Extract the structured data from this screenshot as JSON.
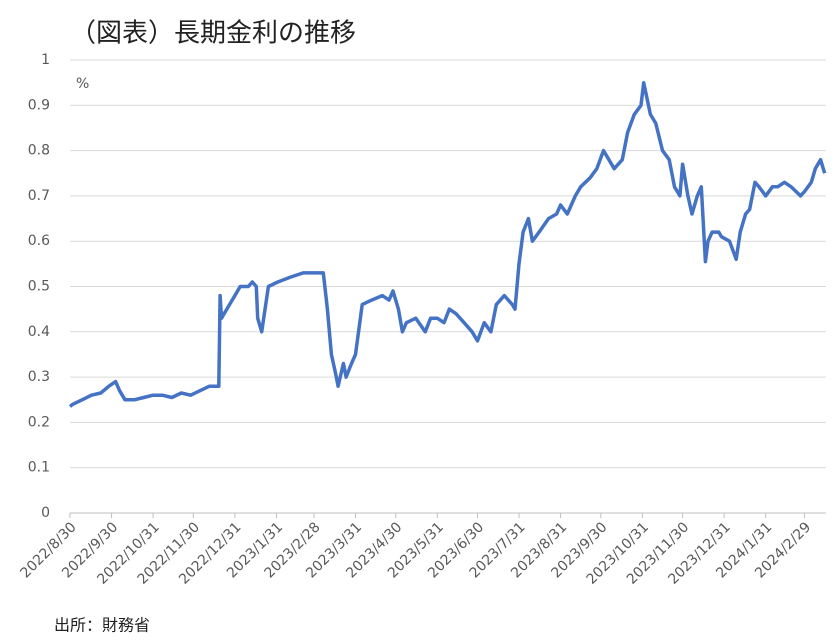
{
  "chart_data": {
    "type": "line",
    "title": "（図表）長期金利の推移",
    "y_label": "%",
    "source": "出所：財務省",
    "x": [
      "2022/8/30",
      "2022/9/1",
      "2022/9/8",
      "2022/9/15",
      "2022/9/22",
      "2022/9/28",
      "2022/10/3",
      "2022/10/6",
      "2022/10/10",
      "2022/10/17",
      "2022/10/24",
      "2022/10/31",
      "2022/11/7",
      "2022/11/14",
      "2022/11/21",
      "2022/11/28",
      "2022/12/5",
      "2022/12/12",
      "2022/12/19",
      "2022/12/20",
      "2022/12/21",
      "2022/12/23",
      "2022/12/27",
      "2022/12/29",
      "2023/1/4",
      "2023/1/10",
      "2023/1/13",
      "2023/1/16",
      "2023/1/17",
      "2023/1/20",
      "2023/1/25",
      "2023/2/1",
      "2023/2/10",
      "2023/2/20",
      "2023/3/7",
      "2023/3/10",
      "2023/3/13",
      "2023/3/16",
      "2023/3/18",
      "2023/3/22",
      "2023/3/24",
      "2023/3/28",
      "2023/3/31",
      "2023/4/5",
      "2023/4/12",
      "2023/4/20",
      "2023/4/25",
      "2023/4/28",
      "2023/5/2",
      "2023/5/5",
      "2023/5/8",
      "2023/5/15",
      "2023/5/22",
      "2023/5/26",
      "2023/5/31",
      "2023/6/5",
      "2023/6/9",
      "2023/6/14",
      "2023/6/20",
      "2023/6/26",
      "2023/6/30",
      "2023/7/5",
      "2023/7/10",
      "2023/7/14",
      "2023/7/20",
      "2023/7/26",
      "2023/7/28",
      "2023/7/31",
      "2023/8/3",
      "2023/8/7",
      "2023/8/10",
      "2023/8/15",
      "2023/8/22",
      "2023/8/28",
      "2023/8/31",
      "2023/9/5",
      "2023/9/11",
      "2023/9/15",
      "2023/9/22",
      "2023/9/27",
      "2023/10/2",
      "2023/10/6",
      "2023/10/10",
      "2023/10/16",
      "2023/10/20",
      "2023/10/25",
      "2023/10/30",
      "2023/11/1",
      "2023/11/6",
      "2023/11/10",
      "2023/11/15",
      "2023/11/20",
      "2023/11/24",
      "2023/11/28",
      "2023/11/30",
      "2023/12/4",
      "2023/12/7",
      "2023/12/11",
      "2023/12/14",
      "2023/12/17",
      "2023/12/19",
      "2023/12/22",
      "2023/12/27",
      "2023/12/29",
      "2024/1/4",
      "2024/1/9",
      "2024/1/12",
      "2024/1/16",
      "2024/1/19",
      "2024/1/23",
      "2024/1/26",
      "2024/1/31",
      "2024/2/5",
      "2024/2/9",
      "2024/2/14",
      "2024/2/19",
      "2024/2/26",
      "2024/2/29",
      "2024/3/5",
      "2024/3/8",
      "2024/3/12",
      "2024/3/14",
      "2024/3/15"
    ],
    "series": [
      {
        "name": "長期金利",
        "color": "#4472c4",
        "values": [
          0.235,
          0.24,
          0.25,
          0.26,
          0.265,
          0.28,
          0.29,
          0.27,
          0.25,
          0.25,
          0.255,
          0.26,
          0.26,
          0.255,
          0.265,
          0.26,
          0.27,
          0.28,
          0.28,
          0.48,
          0.43,
          0.44,
          0.46,
          0.47,
          0.5,
          0.5,
          0.51,
          0.5,
          0.43,
          0.4,
          0.5,
          0.51,
          0.52,
          0.53,
          0.53,
          0.45,
          0.35,
          0.31,
          0.28,
          0.33,
          0.3,
          0.33,
          0.35,
          0.46,
          0.47,
          0.48,
          0.47,
          0.49,
          0.45,
          0.4,
          0.42,
          0.43,
          0.4,
          0.43,
          0.43,
          0.42,
          0.45,
          0.44,
          0.42,
          0.4,
          0.38,
          0.42,
          0.4,
          0.46,
          0.48,
          0.46,
          0.45,
          0.55,
          0.62,
          0.65,
          0.6,
          0.62,
          0.65,
          0.66,
          0.68,
          0.66,
          0.7,
          0.72,
          0.74,
          0.76,
          0.8,
          0.78,
          0.76,
          0.78,
          0.84,
          0.88,
          0.9,
          0.95,
          0.88,
          0.86,
          0.8,
          0.78,
          0.72,
          0.7,
          0.77,
          0.7,
          0.66,
          0.7,
          0.72,
          0.555,
          0.6,
          0.62,
          0.62,
          0.61,
          0.6,
          0.56,
          0.62,
          0.66,
          0.67,
          0.73,
          0.72,
          0.7,
          0.72,
          0.72,
          0.73,
          0.72,
          0.7,
          0.71,
          0.73,
          0.76,
          0.78,
          0.76,
          0.75
        ]
      }
    ],
    "xlim": [
      "2022/8/30",
      "2024/3/16"
    ],
    "xticks": [
      "2022/8/30",
      "2022/9/30",
      "2022/10/31",
      "2022/11/30",
      "2022/12/31",
      "2023/1/31",
      "2023/2/28",
      "2023/3/31",
      "2023/4/30",
      "2023/5/31",
      "2023/6/30",
      "2023/7/31",
      "2023/8/31",
      "2023/9/30",
      "2023/10/31",
      "2023/11/30",
      "2023/12/31",
      "2024/1/31",
      "2024/2/29"
    ],
    "ylim": [
      0,
      1
    ],
    "yticks": [
      0,
      0.1,
      0.2,
      0.3,
      0.4,
      0.5,
      0.6,
      0.7,
      0.8,
      0.9,
      1
    ],
    "grid": true
  }
}
